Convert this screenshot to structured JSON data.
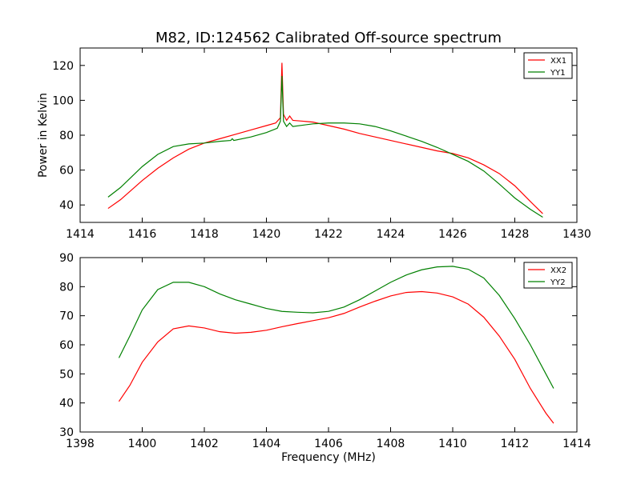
{
  "title": "M82, ID:124562 Calibrated Off-source spectrum",
  "colors": {
    "red": "#ff0000",
    "green": "#008000"
  },
  "chart_data": [
    {
      "type": "line",
      "xlabel": "",
      "ylabel": "Power in Kelvin",
      "xlim": [
        1414,
        1430
      ],
      "ylim": [
        30,
        130
      ],
      "xticks": [
        "1414",
        "1416",
        "1418",
        "1420",
        "1422",
        "1424",
        "1426",
        "1428",
        "1430"
      ],
      "yticks": [
        "40",
        "60",
        "80",
        "100",
        "120"
      ],
      "legend_position": "top-right",
      "series": [
        {
          "name": "XX1",
          "color": "#ff0000",
          "points": [
            [
              1414.9,
              38
            ],
            [
              1415.3,
              43
            ],
            [
              1416.0,
              54
            ],
            [
              1416.5,
              61
            ],
            [
              1417.0,
              67
            ],
            [
              1417.5,
              72
            ],
            [
              1418.0,
              75.5
            ],
            [
              1418.5,
              78
            ],
            [
              1419.0,
              80.5
            ],
            [
              1419.5,
              83
            ],
            [
              1420.0,
              85.5
            ],
            [
              1420.3,
              87
            ],
            [
              1420.45,
              90
            ],
            [
              1420.5,
              121.5
            ],
            [
              1420.55,
              92
            ],
            [
              1420.65,
              88.5
            ],
            [
              1420.75,
              91
            ],
            [
              1420.85,
              88.5
            ],
            [
              1421.2,
              88
            ],
            [
              1421.5,
              87.5
            ],
            [
              1422.0,
              85.5
            ],
            [
              1422.5,
              83.5
            ],
            [
              1423.0,
              81
            ],
            [
              1423.5,
              79
            ],
            [
              1424.0,
              77
            ],
            [
              1424.5,
              75
            ],
            [
              1425.0,
              73
            ],
            [
              1425.5,
              71
            ],
            [
              1426.0,
              69.5
            ],
            [
              1426.5,
              67
            ],
            [
              1427.0,
              63
            ],
            [
              1427.5,
              58
            ],
            [
              1428.0,
              51
            ],
            [
              1428.5,
              42
            ],
            [
              1428.9,
              35
            ]
          ]
        },
        {
          "name": "YY1",
          "color": "#008000",
          "points": [
            [
              1414.9,
              44.5
            ],
            [
              1415.3,
              50
            ],
            [
              1416.0,
              62
            ],
            [
              1416.5,
              69
            ],
            [
              1417.0,
              73.5
            ],
            [
              1417.5,
              75
            ],
            [
              1418.0,
              75.5
            ],
            [
              1418.5,
              76.5
            ],
            [
              1418.85,
              77
            ],
            [
              1418.9,
              78
            ],
            [
              1418.95,
              77
            ],
            [
              1419.5,
              79
            ],
            [
              1420.0,
              81.5
            ],
            [
              1420.35,
              84
            ],
            [
              1420.45,
              88
            ],
            [
              1420.5,
              114
            ],
            [
              1420.55,
              88
            ],
            [
              1420.65,
              85
            ],
            [
              1420.75,
              87
            ],
            [
              1420.85,
              85
            ],
            [
              1421.5,
              86.5
            ],
            [
              1422.0,
              87
            ],
            [
              1422.5,
              87
            ],
            [
              1423.0,
              86.5
            ],
            [
              1423.5,
              85
            ],
            [
              1424.0,
              82.5
            ],
            [
              1424.5,
              79.5
            ],
            [
              1425.0,
              76.5
            ],
            [
              1425.5,
              73
            ],
            [
              1426.0,
              69
            ],
            [
              1426.5,
              65
            ],
            [
              1427.0,
              59.5
            ],
            [
              1427.5,
              52
            ],
            [
              1428.0,
              44
            ],
            [
              1428.5,
              37.5
            ],
            [
              1428.9,
              33
            ]
          ]
        }
      ]
    },
    {
      "type": "line",
      "xlabel": "Frequency (MHz)",
      "ylabel": "",
      "xlim": [
        1398,
        1414
      ],
      "ylim": [
        30,
        90
      ],
      "xticks": [
        "1398",
        "1400",
        "1402",
        "1404",
        "1406",
        "1408",
        "1410",
        "1412",
        "1414"
      ],
      "yticks": [
        "30",
        "40",
        "50",
        "60",
        "70",
        "80",
        "90"
      ],
      "legend_position": "top-right",
      "series": [
        {
          "name": "XX2",
          "color": "#ff0000",
          "points": [
            [
              1399.25,
              40.5
            ],
            [
              1399.6,
              46
            ],
            [
              1400.0,
              54
            ],
            [
              1400.5,
              61
            ],
            [
              1401.0,
              65.5
            ],
            [
              1401.5,
              66.5
            ],
            [
              1402.0,
              65.8
            ],
            [
              1402.5,
              64.5
            ],
            [
              1403.0,
              64
            ],
            [
              1403.5,
              64.3
            ],
            [
              1404.0,
              65
            ],
            [
              1404.5,
              66.2
            ],
            [
              1405.0,
              67.3
            ],
            [
              1405.5,
              68.3
            ],
            [
              1406.0,
              69.3
            ],
            [
              1406.5,
              70.8
            ],
            [
              1407.0,
              73
            ],
            [
              1407.5,
              75
            ],
            [
              1408.0,
              76.8
            ],
            [
              1408.5,
              78
            ],
            [
              1409.0,
              78.3
            ],
            [
              1409.5,
              77.8
            ],
            [
              1410.0,
              76.5
            ],
            [
              1410.5,
              74
            ],
            [
              1411.0,
              69.5
            ],
            [
              1411.5,
              63
            ],
            [
              1412.0,
              55
            ],
            [
              1412.5,
              45
            ],
            [
              1413.0,
              36.5
            ],
            [
              1413.25,
              33
            ]
          ]
        },
        {
          "name": "YY2",
          "color": "#008000",
          "points": [
            [
              1399.25,
              55.5
            ],
            [
              1399.6,
              63
            ],
            [
              1400.0,
              72
            ],
            [
              1400.5,
              79
            ],
            [
              1401.0,
              81.5
            ],
            [
              1401.5,
              81.5
            ],
            [
              1402.0,
              80
            ],
            [
              1402.5,
              77.5
            ],
            [
              1403.0,
              75.5
            ],
            [
              1403.5,
              74
            ],
            [
              1404.0,
              72.5
            ],
            [
              1404.5,
              71.5
            ],
            [
              1405.0,
              71.2
            ],
            [
              1405.5,
              71
            ],
            [
              1406.0,
              71.5
            ],
            [
              1406.5,
              73
            ],
            [
              1407.0,
              75.5
            ],
            [
              1407.5,
              78.5
            ],
            [
              1408.0,
              81.5
            ],
            [
              1408.5,
              84
            ],
            [
              1409.0,
              85.8
            ],
            [
              1409.5,
              86.8
            ],
            [
              1410.0,
              87
            ],
            [
              1410.5,
              86
            ],
            [
              1411.0,
              83
            ],
            [
              1411.5,
              77
            ],
            [
              1412.0,
              69
            ],
            [
              1412.5,
              60
            ],
            [
              1413.0,
              50
            ],
            [
              1413.25,
              45
            ]
          ]
        }
      ]
    }
  ]
}
